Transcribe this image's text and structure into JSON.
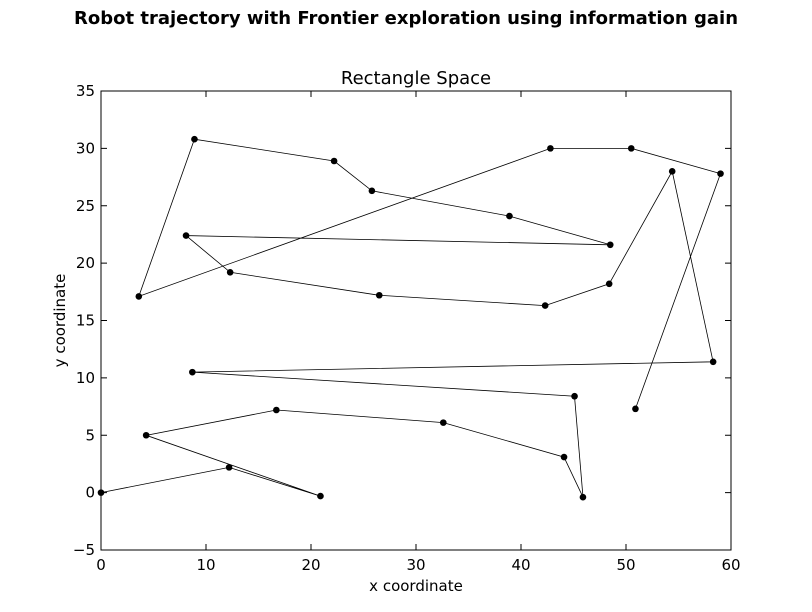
{
  "figure": {
    "suptitle": "Robot trajectory with Frontier exploration using information gain"
  },
  "chart_data": {
    "type": "line",
    "title": "Rectangle Space",
    "xlabel": "x coordinate",
    "ylabel": "y coordinate",
    "xlim": [
      0,
      60
    ],
    "ylim": [
      -5,
      35
    ],
    "xticks": [
      "0",
      "10",
      "20",
      "30",
      "40",
      "50",
      "60"
    ],
    "yticks": [
      "−5",
      "0",
      "5",
      "10",
      "15",
      "20",
      "25",
      "30",
      "35"
    ],
    "grid": false,
    "line_color": "#000000",
    "marker_color": "#000000",
    "series": [
      {
        "points": [
          [
            0.0,
            0.0
          ],
          [
            12.2,
            2.2
          ],
          [
            20.9,
            -0.3
          ],
          [
            4.3,
            5.0
          ],
          [
            16.7,
            7.2
          ],
          [
            32.6,
            6.1
          ],
          [
            44.1,
            3.1
          ],
          [
            45.9,
            -0.4
          ],
          [
            45.1,
            8.4
          ],
          [
            8.7,
            10.5
          ],
          [
            58.3,
            11.4
          ],
          [
            54.4,
            28.0
          ],
          [
            48.4,
            18.2
          ],
          [
            42.3,
            16.3
          ],
          [
            26.5,
            17.2
          ],
          [
            12.3,
            19.2
          ],
          [
            8.1,
            22.4
          ],
          [
            48.5,
            21.6
          ],
          [
            38.9,
            24.1
          ],
          [
            25.8,
            26.3
          ],
          [
            22.2,
            28.9
          ],
          [
            8.9,
            30.8
          ],
          [
            3.6,
            17.1
          ],
          [
            42.8,
            30.0
          ],
          [
            50.5,
            30.0
          ],
          [
            59.0,
            27.8
          ],
          [
            50.9,
            7.3
          ]
        ]
      }
    ]
  }
}
